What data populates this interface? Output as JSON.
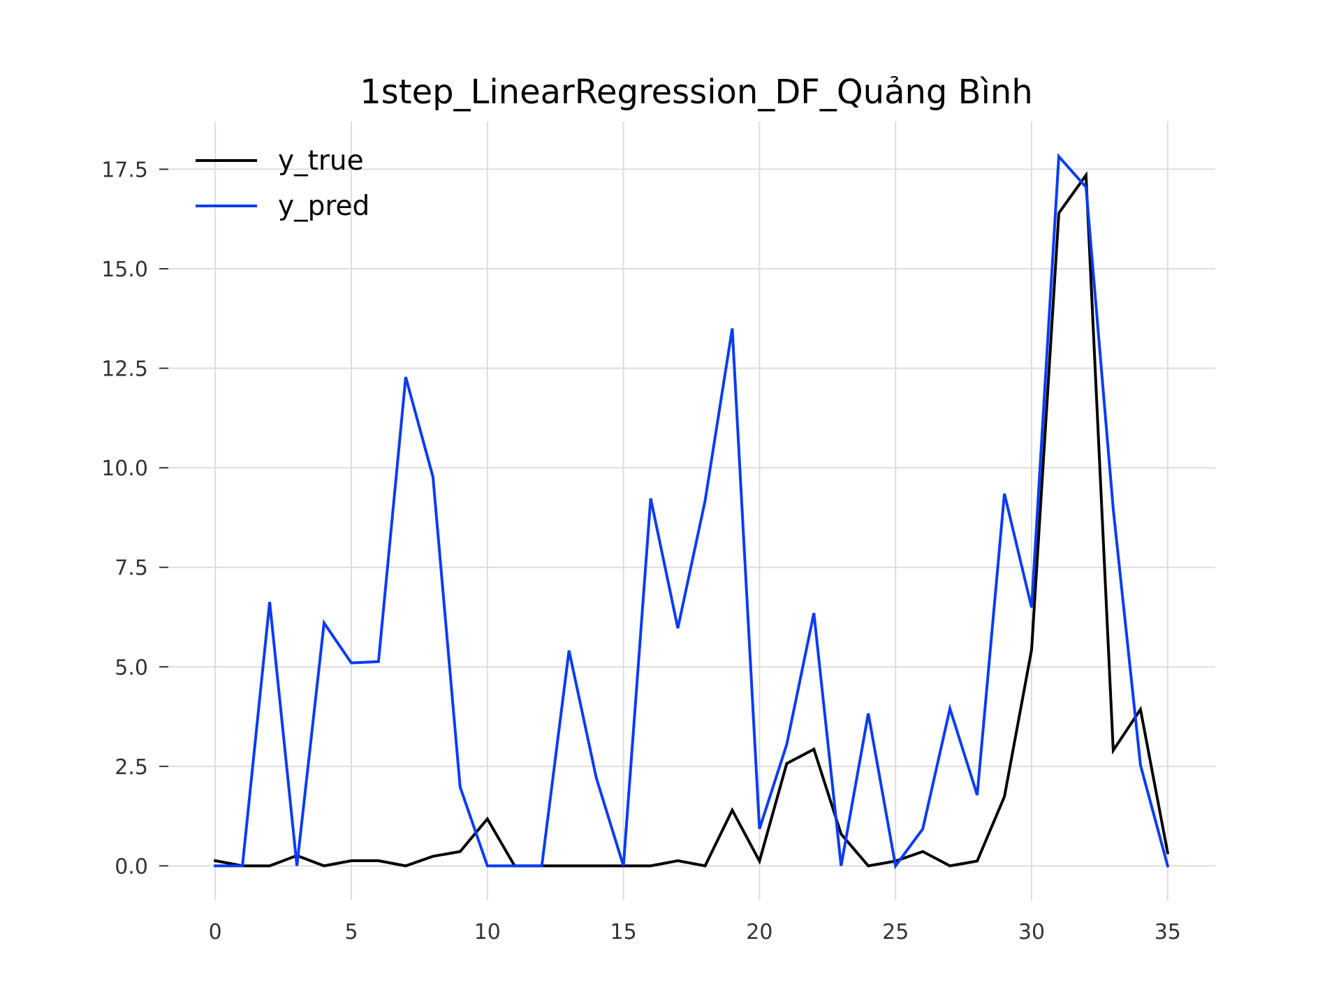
{
  "chart_data": {
    "type": "line",
    "title": "1step_LinearRegression_DF_Quảng Bình",
    "xlabel": "",
    "ylabel": "",
    "xlim": [
      -1.75,
      36.75
    ],
    "ylim": [
      -0.87,
      18.7
    ],
    "x_ticks": [
      0,
      5,
      10,
      15,
      20,
      25,
      30,
      35
    ],
    "y_ticks": [
      0.0,
      2.5,
      5.0,
      7.5,
      10.0,
      12.5,
      15.0,
      17.5
    ],
    "y_tick_labels": [
      "0.0",
      "2.5",
      "5.0",
      "7.5",
      "10.0",
      "12.5",
      "15.0",
      "17.5"
    ],
    "grid": true,
    "legend_position": "top-left",
    "x": [
      0,
      1,
      2,
      3,
      4,
      5,
      6,
      7,
      8,
      9,
      10,
      11,
      12,
      13,
      14,
      15,
      16,
      17,
      18,
      19,
      20,
      21,
      22,
      23,
      24,
      25,
      26,
      27,
      28,
      29,
      30,
      31,
      32,
      33,
      34,
      35
    ],
    "series": [
      {
        "name": "y_true",
        "color": "#000000",
        "values": [
          0.13,
          0.0,
          0.0,
          0.26,
          0.0,
          0.13,
          0.13,
          0.0,
          0.24,
          0.36,
          1.18,
          0.0,
          0.0,
          0.0,
          0.0,
          0.0,
          0.0,
          0.13,
          0.0,
          1.4,
          0.12,
          2.57,
          2.93,
          0.8,
          0.0,
          0.12,
          0.36,
          0.0,
          0.12,
          1.74,
          5.43,
          16.4,
          17.35,
          2.9,
          3.93,
          0.33
        ]
      },
      {
        "name": "y_pred",
        "color": "#0a3cf2",
        "values": [
          0.0,
          0.0,
          6.63,
          0.0,
          6.1,
          5.1,
          5.13,
          12.28,
          9.77,
          1.98,
          0.0,
          0.0,
          0.0,
          5.41,
          2.22,
          0.0,
          9.23,
          5.97,
          9.17,
          13.5,
          0.93,
          3.05,
          6.35,
          0.0,
          3.83,
          0.0,
          0.93,
          3.95,
          1.78,
          9.35,
          6.49,
          17.82,
          17.05,
          8.96,
          2.53,
          0.0
        ]
      }
    ]
  }
}
